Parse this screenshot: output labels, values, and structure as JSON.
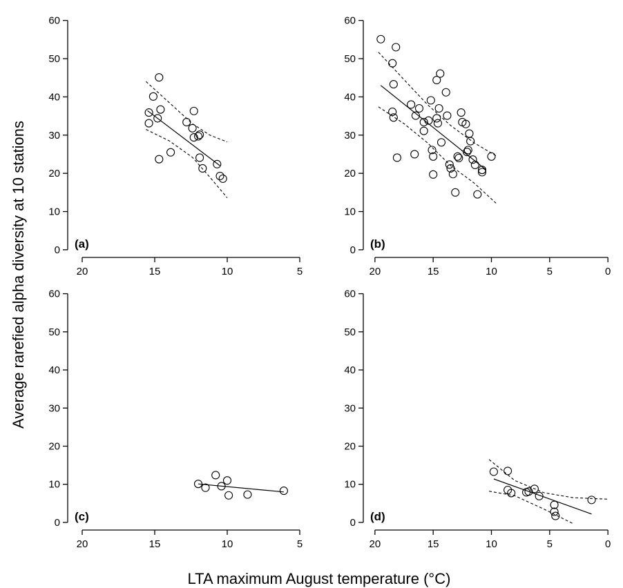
{
  "figure": {
    "xlabel": "LTA maximum August temperature (°C)",
    "ylabel": "Average rarefied alpha diversity at 10 stations"
  },
  "chart_data": [
    {
      "type": "scatter",
      "panel": "(a)",
      "xlim": [
        21,
        3
      ],
      "ylim": [
        -2,
        63
      ],
      "xticks": [
        20,
        15,
        10,
        5
      ],
      "yticks": [
        0,
        10,
        20,
        30,
        40,
        50,
        60
      ],
      "points": [
        [
          15.4,
          35.9
        ],
        [
          15.1,
          40.1
        ],
        [
          14.7,
          45.1
        ],
        [
          14.6,
          36.7
        ],
        [
          14.8,
          34.4
        ],
        [
          15.4,
          33.1
        ],
        [
          14.7,
          23.7
        ],
        [
          13.9,
          25.5
        ],
        [
          12.8,
          33.4
        ],
        [
          12.3,
          36.3
        ],
        [
          12.4,
          31.8
        ],
        [
          12.3,
          29.4
        ],
        [
          12.0,
          29.7
        ],
        [
          11.9,
          30.1
        ],
        [
          11.9,
          24.1
        ],
        [
          11.7,
          21.3
        ],
        [
          10.7,
          22.4
        ],
        [
          10.5,
          19.3
        ],
        [
          10.3,
          18.6
        ]
      ],
      "fit": [
        [
          15.5,
          36.4
        ],
        [
          10.5,
          22.0
        ]
      ],
      "ci_upper": [
        [
          15.6,
          44.0
        ],
        [
          14.0,
          38.5
        ],
        [
          12.4,
          33.0
        ],
        [
          11.2,
          30.0
        ],
        [
          10.0,
          28.2
        ]
      ],
      "ci_lower": [
        [
          15.6,
          31.5
        ],
        [
          14.0,
          28.5
        ],
        [
          12.4,
          24.2
        ],
        [
          11.2,
          19.0
        ],
        [
          10.0,
          13.6
        ]
      ],
      "grid": false,
      "legend": "none"
    },
    {
      "type": "scatter",
      "panel": "(b)",
      "xlim": [
        21,
        -1
      ],
      "ylim": [
        -2,
        63
      ],
      "xticks": [
        20,
        15,
        10,
        5,
        0
      ],
      "yticks": [
        0,
        10,
        20,
        30,
        40,
        50,
        60
      ],
      "points": [
        [
          19.5,
          55.1
        ],
        [
          18.2,
          53.0
        ],
        [
          18.5,
          48.8
        ],
        [
          18.4,
          43.3
        ],
        [
          18.5,
          36.1
        ],
        [
          18.4,
          34.6
        ],
        [
          18.1,
          24.1
        ],
        [
          16.9,
          38.0
        ],
        [
          16.5,
          35.1
        ],
        [
          16.2,
          37.0
        ],
        [
          15.8,
          33.4
        ],
        [
          15.8,
          31.1
        ],
        [
          15.4,
          33.8
        ],
        [
          15.2,
          39.1
        ],
        [
          15.1,
          26.1
        ],
        [
          15.0,
          24.4
        ],
        [
          15.0,
          19.7
        ],
        [
          14.7,
          44.4
        ],
        [
          14.4,
          46.1
        ],
        [
          14.7,
          34.4
        ],
        [
          14.6,
          33.1
        ],
        [
          14.5,
          37.0
        ],
        [
          14.3,
          28.1
        ],
        [
          13.9,
          41.2
        ],
        [
          13.8,
          35.1
        ],
        [
          13.6,
          22.3
        ],
        [
          13.5,
          21.3
        ],
        [
          13.3,
          19.8
        ],
        [
          13.1,
          15.0
        ],
        [
          12.9,
          24.4
        ],
        [
          12.8,
          24.0
        ],
        [
          12.6,
          35.9
        ],
        [
          12.5,
          33.4
        ],
        [
          12.2,
          32.9
        ],
        [
          12.1,
          25.6
        ],
        [
          12.0,
          26.1
        ],
        [
          11.9,
          30.4
        ],
        [
          11.8,
          28.4
        ],
        [
          11.6,
          23.6
        ],
        [
          11.4,
          22.2
        ],
        [
          11.2,
          14.5
        ],
        [
          10.8,
          20.3
        ],
        [
          10.8,
          20.9
        ],
        [
          10.0,
          24.4
        ],
        [
          16.6,
          25.0
        ]
      ],
      "fit": [
        [
          19.5,
          43.0
        ],
        [
          10.5,
          21.0
        ]
      ],
      "ci_upper": [
        [
          19.7,
          51.7
        ],
        [
          17.5,
          44.5
        ],
        [
          15.5,
          38.0
        ],
        [
          13.5,
          32.5
        ],
        [
          11.5,
          28.0
        ],
        [
          9.6,
          24.6
        ]
      ],
      "ci_lower": [
        [
          19.7,
          37.4
        ],
        [
          17.5,
          33.0
        ],
        [
          15.5,
          28.0
        ],
        [
          13.5,
          22.0
        ],
        [
          11.5,
          17.5
        ],
        [
          9.6,
          12.2
        ]
      ],
      "grid": false,
      "legend": "none"
    },
    {
      "type": "scatter",
      "panel": "(c)",
      "xlim": [
        21,
        3
      ],
      "ylim": [
        -2,
        63
      ],
      "xticks": [
        20,
        15,
        10,
        5
      ],
      "yticks": [
        0,
        10,
        20,
        30,
        40,
        50,
        60
      ],
      "points": [
        [
          12.0,
          10.1
        ],
        [
          11.5,
          9.1
        ],
        [
          10.8,
          12.4
        ],
        [
          10.4,
          9.5
        ],
        [
          10.0,
          11.0
        ],
        [
          9.9,
          7.1
        ],
        [
          8.6,
          7.3
        ],
        [
          6.1,
          8.3
        ]
      ],
      "fit": [
        [
          12.0,
          10.1
        ],
        [
          6.1,
          8.0
        ]
      ],
      "grid": false,
      "legend": "none"
    },
    {
      "type": "scatter",
      "panel": "(d)",
      "xlim": [
        21,
        -1
      ],
      "ylim": [
        -2,
        63
      ],
      "xticks": [
        20,
        15,
        10,
        5,
        0
      ],
      "yticks": [
        0,
        10,
        20,
        30,
        40,
        50,
        60
      ],
      "points": [
        [
          9.8,
          13.3
        ],
        [
          8.6,
          13.5
        ],
        [
          8.6,
          8.5
        ],
        [
          8.3,
          7.7
        ],
        [
          7.0,
          7.9
        ],
        [
          6.8,
          8.1
        ],
        [
          6.3,
          8.8
        ],
        [
          5.9,
          6.9
        ],
        [
          4.6,
          4.6
        ],
        [
          4.6,
          2.8
        ],
        [
          4.5,
          1.7
        ],
        [
          1.4,
          5.9
        ]
      ],
      "fit": [
        [
          9.8,
          11.4
        ],
        [
          1.4,
          2.2
        ]
      ],
      "ci_upper": [
        [
          10.2,
          16.5
        ],
        [
          8.0,
          11.0
        ],
        [
          5.5,
          7.8
        ],
        [
          3.0,
          6.5
        ],
        [
          0.0,
          6.1
        ]
      ],
      "ci_lower": [
        [
          10.2,
          8.2
        ],
        [
          8.0,
          7.0
        ],
        [
          5.5,
          3.5
        ],
        [
          3.0,
          -0.3
        ]
      ],
      "grid": false,
      "legend": "none"
    }
  ]
}
